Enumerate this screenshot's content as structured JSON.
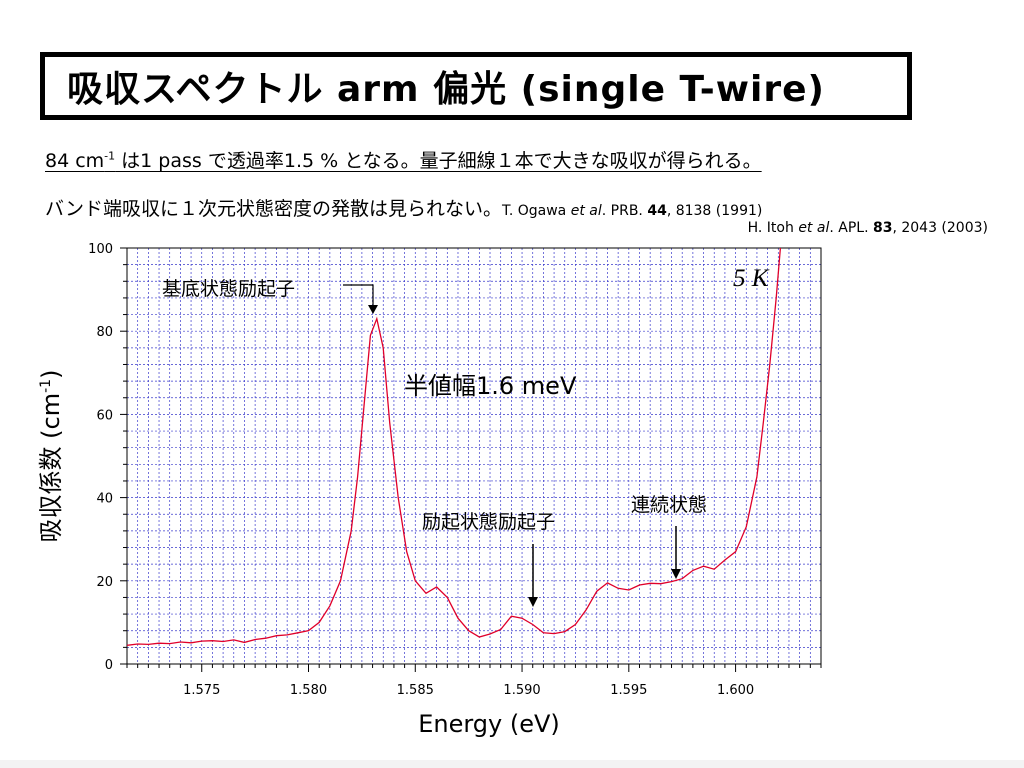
{
  "slide": {
    "title": "吸収スペクトル arm 偏光 (single T-wire)",
    "line1_a": "84 cm",
    "line1_sup": "-1",
    "line1_b": " は1 pass で透過率1.5 % となる。量子細線１本で大きな吸収が得られる。",
    "line2_text": "バンド端吸収に１次元状態密度の発散は見られない。",
    "ref1": {
      "author": "T. Ogawa ",
      "etal": "et al",
      "journal": ". PRB. ",
      "vol": "44",
      "rest": ", 8138 (1991)"
    },
    "ref2": {
      "author": "H. Itoh ",
      "etal": "et al",
      "journal": ". APL. ",
      "vol": "83",
      "rest": ", 2043 (2003)"
    }
  },
  "chart_data": {
    "type": "line",
    "xlabel": "Energy (eV)",
    "ylabel": "吸収係数 (cm",
    "ylabel_sup": "-1",
    "ylabel_close": ")",
    "xlim": [
      1.5715,
      1.604
    ],
    "ylim": [
      0,
      100
    ],
    "xticks": [
      "1.575",
      "1.580",
      "1.585",
      "1.590",
      "1.595",
      "1.600"
    ],
    "yticks": [
      "0",
      "20",
      "40",
      "60",
      "80",
      "100"
    ],
    "grid": true,
    "line_color": "#e0002a",
    "grid_color": "#3a3acc",
    "series": [
      {
        "x": [
          1.5715,
          1.572,
          1.5725,
          1.573,
          1.5735,
          1.574,
          1.5745,
          1.575,
          1.5755,
          1.576,
          1.5765,
          1.577,
          1.5775,
          1.578,
          1.5785,
          1.579,
          1.5795,
          1.58,
          1.5805,
          1.581,
          1.5815,
          1.582,
          1.5823,
          1.5826,
          1.5829,
          1.5832,
          1.5835,
          1.5838,
          1.5842,
          1.5846,
          1.585,
          1.5855,
          1.586,
          1.5865,
          1.587,
          1.5875,
          1.588,
          1.5885,
          1.589,
          1.5895,
          1.59,
          1.5905,
          1.591,
          1.5915,
          1.592,
          1.5925,
          1.593,
          1.5935,
          1.594,
          1.5945,
          1.595,
          1.5955,
          1.596,
          1.5965,
          1.597,
          1.5975,
          1.598,
          1.5985,
          1.599,
          1.5995,
          1.6,
          1.6005,
          1.601,
          1.6013,
          1.6016,
          1.6019,
          1.6021
        ],
        "y": [
          4.5,
          4.8,
          4.7,
          5.0,
          4.9,
          5.3,
          5.1,
          5.5,
          5.6,
          5.4,
          5.8,
          5.2,
          5.9,
          6.2,
          6.8,
          7.0,
          7.5,
          8.0,
          10.0,
          14.0,
          20.0,
          32.0,
          45.0,
          62.0,
          79.0,
          83.0,
          76.0,
          58.0,
          40.0,
          27.0,
          20.0,
          17.0,
          18.5,
          16.0,
          11.0,
          8.0,
          6.5,
          7.2,
          8.3,
          11.5,
          11.0,
          9.5,
          7.5,
          7.3,
          7.8,
          9.5,
          13.0,
          17.5,
          19.5,
          18.2,
          17.8,
          19.0,
          19.4,
          19.3,
          19.8,
          20.5,
          22.5,
          23.5,
          22.8,
          25.0,
          27.0,
          33.0,
          45.0,
          58.0,
          72.0,
          88.0,
          100.0
        ]
      }
    ],
    "annotations": {
      "ground": "基底状態励起子",
      "fwhm": "半値幅1.6 meV",
      "temp": "5 K",
      "excited": "励起状態励起子",
      "continuum": "連続状態"
    }
  }
}
